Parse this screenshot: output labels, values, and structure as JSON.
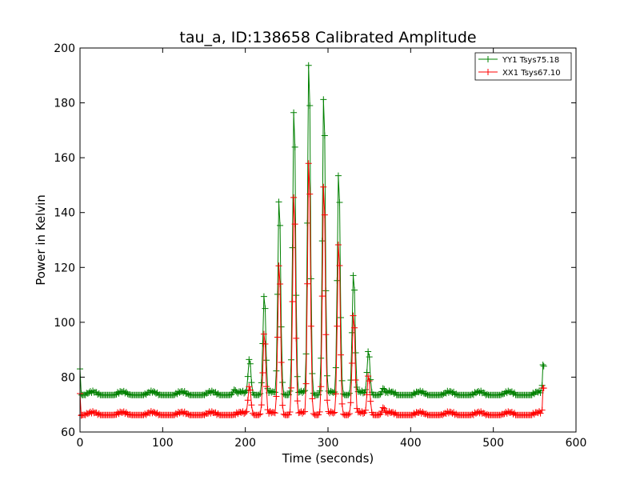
{
  "chart_data": {
    "type": "line",
    "title": "tau_a, ID:138658 Calibrated Amplitude",
    "xlabel": "Time (seconds)",
    "ylabel": "Power in Kelvin",
    "xlim": [
      0,
      600
    ],
    "ylim": [
      60,
      200
    ],
    "xticks": [
      0,
      100,
      200,
      300,
      400,
      500,
      600
    ],
    "yticks": [
      60,
      80,
      100,
      120,
      140,
      160,
      180,
      200
    ],
    "grid": false,
    "legend_position": "top-right",
    "marker": "+",
    "series": [
      {
        "name": "YY1 Tsys75.18",
        "color": "#008000",
        "baseline": 73.5,
        "ripple_amplitude": 1.2,
        "ripple_period_s": 36,
        "start": [
          [
            0,
            83
          ],
          [
            1.5,
            74
          ]
        ],
        "end": [
          [
            559,
            77
          ],
          [
            560,
            84.5
          ],
          [
            561,
            84
          ]
        ],
        "peaks": [
          {
            "t": 205,
            "peak": 87
          },
          {
            "t": 223,
            "peak": 111
          },
          {
            "t": 241,
            "peak": 147
          },
          {
            "t": 259,
            "peak": 181
          },
          {
            "t": 277,
            "peak": 199
          },
          {
            "t": 295,
            "peak": 186
          },
          {
            "t": 313,
            "peak": 157
          },
          {
            "t": 331,
            "peak": 119
          },
          {
            "t": 349,
            "peak": 90
          },
          {
            "t": 367,
            "peak": 76
          },
          {
            "t": 187,
            "peak": 75.5
          }
        ]
      },
      {
        "name": "XX1 Tsys67.10",
        "color": "#ff0000",
        "baseline": 66.2,
        "ripple_amplitude": 1.0,
        "ripple_period_s": 36,
        "start": [
          [
            0,
            74
          ],
          [
            1.5,
            66
          ]
        ],
        "end": [
          [
            559,
            68
          ],
          [
            560,
            76
          ],
          [
            561,
            76
          ]
        ],
        "peaks": [
          {
            "t": 205,
            "peak": 77
          },
          {
            "t": 223,
            "peak": 97
          },
          {
            "t": 241,
            "peak": 123
          },
          {
            "t": 259,
            "peak": 149
          },
          {
            "t": 277,
            "peak": 162
          },
          {
            "t": 295,
            "peak": 153
          },
          {
            "t": 313,
            "peak": 131
          },
          {
            "t": 331,
            "peak": 104
          },
          {
            "t": 349,
            "peak": 81
          },
          {
            "t": 367,
            "peak": 69
          }
        ]
      }
    ]
  }
}
